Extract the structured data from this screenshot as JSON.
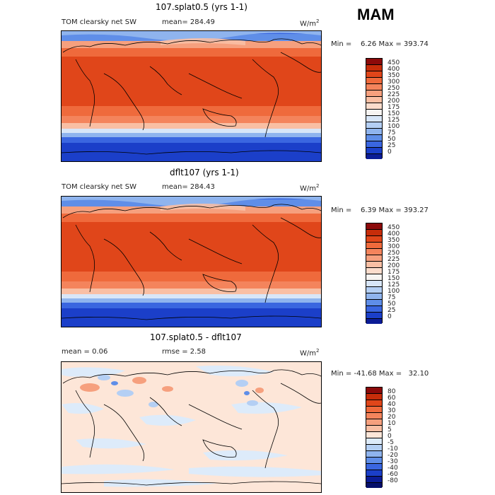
{
  "season": "MAM",
  "panels": [
    {
      "title": "107.splat0.5 (yrs 1-1)",
      "variable": "TOM clearsky net SW",
      "mean_text": "mean= 284.49",
      "units": "W/m",
      "units_sup": "2",
      "minmax_text": "Min =    6.26 Max = 393.74"
    },
    {
      "title": "dflt107 (yrs 1-1)",
      "variable": "TOM clearsky net SW",
      "mean_text": "mean= 284.43",
      "units": "W/m",
      "units_sup": "2",
      "minmax_text": "Min =    6.39 Max = 393.27"
    },
    {
      "title": "107.splat0.5 - dflt107",
      "mean_text": "mean =     0.06",
      "rmse_text": "rmse =     2.58",
      "units": "W/m",
      "units_sup": "2",
      "minmax_text": "Min = -41.68 Max =   32.10"
    }
  ],
  "colorbar_abs": {
    "labels": [
      "450",
      "400",
      "350",
      "300",
      "250",
      "225",
      "200",
      "175",
      "150",
      "125",
      "100",
      "75",
      "50",
      "25",
      "0"
    ],
    "colors": [
      "#8c0a0a",
      "#c72d0a",
      "#e0461a",
      "#ef6a3c",
      "#f4845c",
      "#f6a07e",
      "#f9bfa4",
      "#fbdccc",
      "#f7f4f2",
      "#d8e6f8",
      "#b4cff4",
      "#8fb4ee",
      "#5f8ee8",
      "#3a66e0",
      "#1b3fc9",
      "#0b1c96"
    ]
  },
  "colorbar_diff": {
    "labels": [
      "80",
      "60",
      "40",
      "30",
      "20",
      "10",
      "5",
      "0",
      "-5",
      "-10",
      "-20",
      "-30",
      "-40",
      "-60",
      "-80"
    ],
    "colors": [
      "#8c0a0a",
      "#c72d0a",
      "#e0461a",
      "#ef6a3c",
      "#f4845c",
      "#f6a07e",
      "#f9bfa4",
      "#fde6d8",
      "#ddebfa",
      "#b4cff4",
      "#8fb4ee",
      "#5f8ee8",
      "#3a66e0",
      "#1b3fc9",
      "#0b1c96",
      "#050f6b"
    ]
  }
}
